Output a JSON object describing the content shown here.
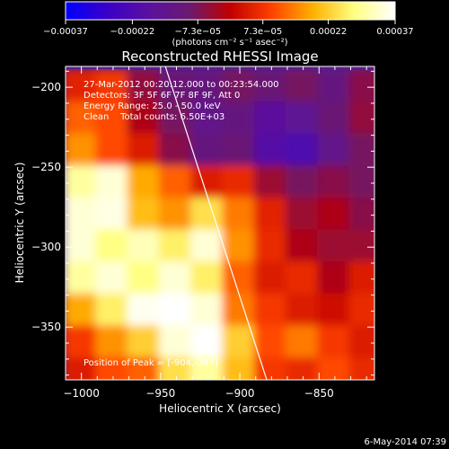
{
  "chart_data": {
    "type": "heatmap",
    "title": "Reconstructed RHESSI Image",
    "xlabel": "Heliocentric X (arcsec)",
    "ylabel": "Heliocentric Y (arcsec)",
    "xlim": [
      -1010,
      -815
    ],
    "ylim": [
      -383,
      -187
    ],
    "x_ticks": [
      -1000,
      -950,
      -900,
      -850
    ],
    "y_ticks": [
      -200,
      -250,
      -300,
      -350
    ],
    "x_tick_labels": [
      "−1000",
      "−950",
      "−900",
      "−850"
    ],
    "y_tick_labels": [
      "−200",
      "−250",
      "−300",
      "−350"
    ],
    "colorbar": {
      "range": [
        -0.00037,
        0.00037
      ],
      "tick_values": [
        -0.00037,
        -0.00022,
        -7.3e-05,
        7.3e-05,
        0.00022,
        0.00037
      ],
      "tick_labels": [
        "−0.00037",
        "−0.00022",
        "−7.3e−05",
        "7.3e−05",
        "0.00022",
        "0.00037"
      ],
      "label": "(photons cm⁻² s⁻¹ asec⁻²)",
      "colors": [
        "#0000ff",
        "#3a00c8",
        "#5a10a0",
        "#6a1a70",
        "#c00000",
        "#ff4000",
        "#ffb000",
        "#ffff80",
        "#ffffff"
      ]
    },
    "annotations": [
      "27-Mar-2012 00:20:12.000 to 00:23:54.000",
      "Detectors: 3F 5F 6F 7F 8F 9F, Att 0",
      "Energy Range: 25.0 - 50.0 keV",
      "Clean    Total counts: 6.50E+03"
    ],
    "peak_label": "Position of Peak = [-904,-347]",
    "peak": [
      -904,
      -347
    ],
    "limb_line": [
      [
        -947,
        -187
      ],
      [
        -883,
        -383
      ]
    ],
    "intensity_map": {
      "x_centers": [
        -1000,
        -980,
        -960,
        -940,
        -920,
        -900,
        -880,
        -860,
        -840,
        -820
      ],
      "y_centers": [
        -200,
        -220,
        -240,
        -260,
        -280,
        -300,
        -320,
        -340,
        -360,
        -380
      ],
      "values": [
        [
          5e-05,
          8e-05,
          -5e-05,
          -0.0001,
          -0.00012,
          -8e-05,
          -0.0001,
          -8e-05,
          -0.00012,
          -6e-05
        ],
        [
          0.00012,
          0.0001,
          -2e-05,
          -8e-05,
          -0.00014,
          -0.00012,
          -0.00018,
          -0.00016,
          -0.0001,
          -5e-05
        ],
        [
          0.00016,
          0.0001,
          4e-05,
          -6e-05,
          -0.00012,
          -0.0001,
          -0.0002,
          -0.00022,
          -0.00014,
          -8e-05
        ],
        [
          0.0003,
          0.00034,
          0.00018,
          0.00012,
          4e-05,
          6e-05,
          -4e-05,
          -8e-05,
          -6e-05,
          -8e-05
        ],
        [
          0.00034,
          0.00035,
          0.0002,
          0.00016,
          0.00024,
          0.00014,
          5e-05,
          -4e-05,
          -2e-05,
          -6e-05
        ],
        [
          0.00034,
          0.00028,
          0.00032,
          0.00026,
          0.00034,
          0.00016,
          6e-05,
          -2e-05,
          -4e-05,
          -4e-05
        ],
        [
          0.0003,
          0.00034,
          0.00028,
          0.00034,
          0.00026,
          0.00012,
          4e-05,
          6e-05,
          -2e-05,
          4e-05
        ],
        [
          0.00018,
          0.00026,
          0.00036,
          0.00037,
          0.00034,
          0.00014,
          8e-05,
          4e-05,
          2e-05,
          6e-05
        ],
        [
          8e-05,
          0.00016,
          0.00022,
          0.00034,
          0.00037,
          0.00022,
          0.0001,
          0.00014,
          8e-05,
          4e-05
        ],
        [
          4e-05,
          0.0001,
          0.00012,
          0.00024,
          0.0003,
          0.0002,
          8e-05,
          6e-05,
          0.0001,
          6e-05
        ]
      ]
    }
  },
  "timestamp": "6-May-2014 07:39"
}
